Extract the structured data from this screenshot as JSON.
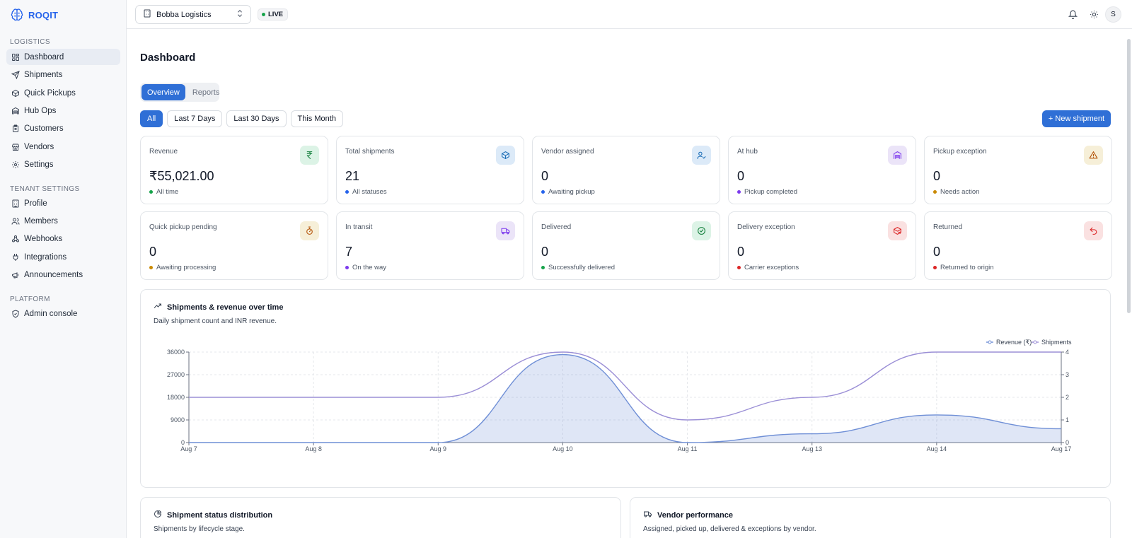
{
  "brand": {
    "name": "ROQIT"
  },
  "sidebar": {
    "sections": [
      {
        "title": "LOGISTICS",
        "items": [
          {
            "label": "Dashboard",
            "icon": "dashboard-icon",
            "active": true
          },
          {
            "label": "Shipments",
            "icon": "send-icon"
          },
          {
            "label": "Quick Pickups",
            "icon": "package-icon"
          },
          {
            "label": "Hub Ops",
            "icon": "warehouse-icon"
          },
          {
            "label": "Customers",
            "icon": "clipboard-icon"
          },
          {
            "label": "Vendors",
            "icon": "store-icon"
          },
          {
            "label": "Settings",
            "icon": "gear-icon"
          }
        ]
      },
      {
        "title": "TENANT SETTINGS",
        "items": [
          {
            "label": "Profile",
            "icon": "building-icon"
          },
          {
            "label": "Members",
            "icon": "users-icon"
          },
          {
            "label": "Webhooks",
            "icon": "webhook-icon"
          },
          {
            "label": "Integrations",
            "icon": "plug-icon"
          },
          {
            "label": "Announcements",
            "icon": "megaphone-icon"
          }
        ]
      },
      {
        "title": "PLATFORM",
        "items": [
          {
            "label": "Admin console",
            "icon": "shield-check-icon"
          }
        ]
      }
    ]
  },
  "topbar": {
    "tenant": "Bobba Logistics",
    "live_label": "LIVE"
  },
  "user": {
    "initial": "S"
  },
  "page": {
    "title": "Dashboard"
  },
  "tabs": [
    {
      "label": "Overview",
      "active": true
    },
    {
      "label": "Reports"
    }
  ],
  "filters": [
    {
      "label": "All",
      "active": true
    },
    {
      "label": "Last 7 Days"
    },
    {
      "label": "Last 30 Days"
    },
    {
      "label": "This Month"
    }
  ],
  "new_shipment_label": "+ New shipment",
  "cards": [
    {
      "title": "Revenue",
      "value": "₹55,021.00",
      "sub": "All time",
      "dot": "#16a34a",
      "icon": "rupee-icon",
      "icon_bg": "#dcf3e6",
      "icon_color": "#15803d"
    },
    {
      "title": "Total shipments",
      "value": "21",
      "sub": "All statuses",
      "dot": "#2563eb",
      "icon": "box-icon",
      "icon_bg": "#dceaf8",
      "icon_color": "#1d6fb8"
    },
    {
      "title": "Vendor assigned",
      "value": "0",
      "sub": "Awaiting pickup",
      "dot": "#2563eb",
      "icon": "user-check-icon",
      "icon_bg": "#dceaf8",
      "icon_color": "#1d6fb8"
    },
    {
      "title": "At hub",
      "value": "0",
      "sub": "Pickup completed",
      "dot": "#7c3aed",
      "icon": "warehouse-icon",
      "icon_bg": "#ebe4f8",
      "icon_color": "#7c3aed"
    },
    {
      "title": "Pickup exception",
      "value": "0",
      "sub": "Needs action",
      "dot": "#ca8a04",
      "icon": "warning-icon",
      "icon_bg": "#f6efd8",
      "icon_color": "#b45309"
    },
    {
      "title": "Quick pickup pending",
      "value": "0",
      "sub": "Awaiting processing",
      "dot": "#ca8a04",
      "icon": "timer-icon",
      "icon_bg": "#f6efd8",
      "icon_color": "#b45309"
    },
    {
      "title": "In transit",
      "value": "7",
      "sub": "On the way",
      "dot": "#7c3aed",
      "icon": "truck-icon",
      "icon_bg": "#ebe4f8",
      "icon_color": "#7c3aed"
    },
    {
      "title": "Delivered",
      "value": "0",
      "sub": "Successfully delivered",
      "dot": "#16a34a",
      "icon": "check-circle-icon",
      "icon_bg": "#dcf3e6",
      "icon_color": "#15803d"
    },
    {
      "title": "Delivery exception",
      "value": "0",
      "sub": "Carrier exceptions",
      "dot": "#dc2626",
      "icon": "package-x-icon",
      "icon_bg": "#fae1e1",
      "icon_color": "#dc2626"
    },
    {
      "title": "Returned",
      "value": "0",
      "sub": "Returned to origin",
      "dot": "#dc2626",
      "icon": "undo-icon",
      "icon_bg": "#fae1e1",
      "icon_color": "#dc2626"
    }
  ],
  "chart_panel": {
    "title": "Shipments & revenue over time",
    "subtitle": "Daily shipment count and INR revenue."
  },
  "chart_data": {
    "type": "area",
    "categories": [
      "Aug 7",
      "Aug 8",
      "Aug 9",
      "Aug 10",
      "Aug 11",
      "Aug 13",
      "Aug 14",
      "Aug 17"
    ],
    "series": [
      {
        "name": "Revenue (₹)",
        "axis": "left",
        "values": [
          0,
          0,
          0,
          35000,
          0,
          3500,
          11000,
          5500
        ],
        "color": "#6f8fd6"
      },
      {
        "name": "Shipments",
        "axis": "right",
        "values": [
          2,
          2,
          2,
          4,
          1,
          2,
          4,
          4
        ],
        "color": "#9b8fd6"
      }
    ],
    "y_left": {
      "ticks": [
        0,
        9000,
        18000,
        27000,
        36000
      ],
      "range": [
        0,
        36000
      ]
    },
    "y_right": {
      "ticks": [
        0,
        1,
        2,
        3,
        4
      ],
      "range": [
        0,
        4
      ]
    },
    "legend_position": "top-right",
    "grid": true
  },
  "bottom_panels": [
    {
      "title": "Shipment status distribution",
      "subtitle": "Shipments by lifecycle stage.",
      "icon": "pie-chart-icon"
    },
    {
      "title": "Vendor performance",
      "subtitle": "Assigned, picked up, delivered & exceptions by vendor.",
      "icon": "truck-icon"
    }
  ]
}
